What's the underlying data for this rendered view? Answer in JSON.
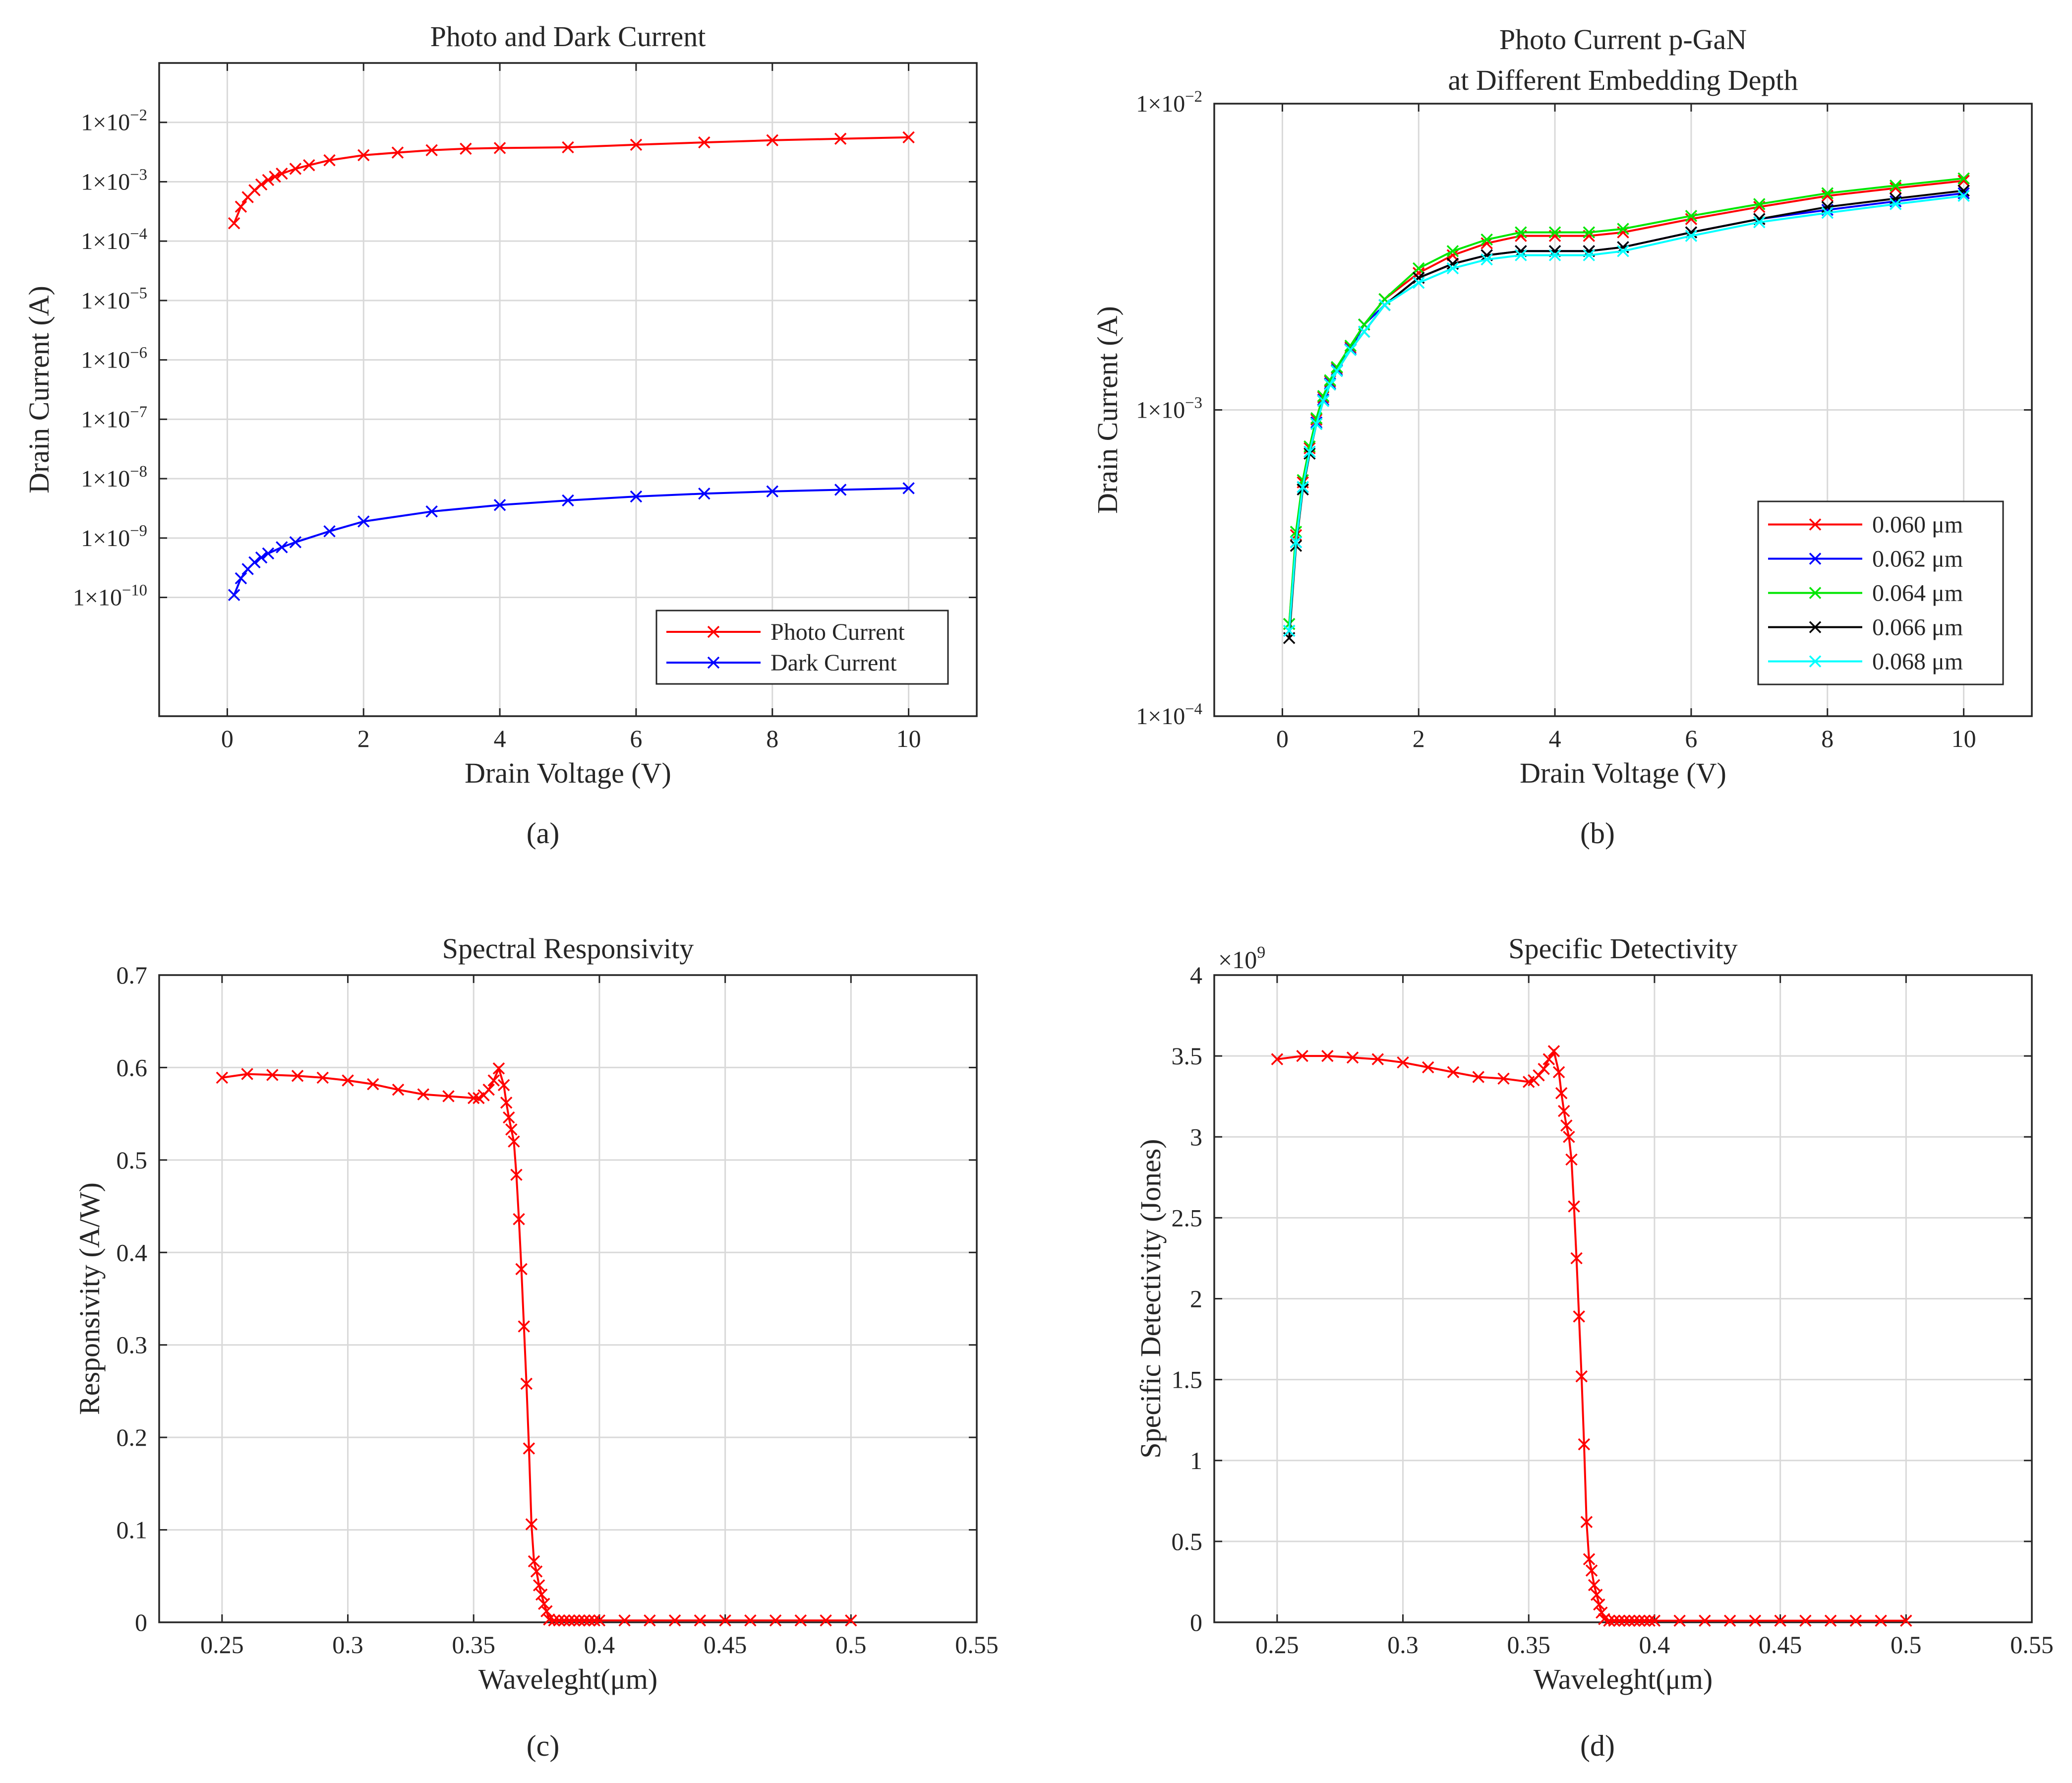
{
  "panel_labels": [
    "(a)",
    "(b)",
    "(c)",
    "(d)"
  ],
  "chart_data": [
    {
      "id": "a",
      "type": "line",
      "title": "Photo and Dark Current",
      "xlabel": "Drain Voltage (V)",
      "ylabel": "Drain Current (A)",
      "yscale": "log",
      "xlim": [
        -1,
        11
      ],
      "ylim_exp": [
        -12,
        -1
      ],
      "xticks": [
        0,
        2,
        4,
        6,
        8,
        10
      ],
      "xtick_labels": [
        "0",
        "2",
        "4",
        "6",
        "8",
        "10"
      ],
      "ytick_exps": [
        -10,
        -9,
        -8,
        -7,
        -6,
        -5,
        -4,
        -3,
        -2
      ],
      "ytick_labels": [
        {
          "base": "1×10",
          "exp": "−10"
        },
        {
          "base": "1×10",
          "exp": "−9"
        },
        {
          "base": "1×10",
          "exp": "−8"
        },
        {
          "base": "1×10",
          "exp": "−7"
        },
        {
          "base": "1×10",
          "exp": "−6"
        },
        {
          "base": "1×10",
          "exp": "−5"
        },
        {
          "base": "1×10",
          "exp": "−4"
        },
        {
          "base": "1×10",
          "exp": "−3"
        },
        {
          "base": "1×10",
          "exp": "−2"
        }
      ],
      "grid": true,
      "legend_position": "bottom-right",
      "series": [
        {
          "name": "Photo Current",
          "color": "#ff0000",
          "x": [
            0.1,
            0.2,
            0.3,
            0.4,
            0.5,
            0.6,
            0.7,
            0.8,
            1.0,
            1.2,
            1.5,
            2,
            2.5,
            3,
            3.5,
            4,
            5,
            6,
            7,
            8,
            9,
            10
          ],
          "y": [
            0.0002,
            0.00038,
            0.00055,
            0.00072,
            0.0009,
            0.00107,
            0.00122,
            0.00137,
            0.00165,
            0.0019,
            0.0023,
            0.0028,
            0.0031,
            0.0034,
            0.0036,
            0.0037,
            0.0038,
            0.0042,
            0.0046,
            0.005,
            0.0053,
            0.0056
          ]
        },
        {
          "name": "Dark Current",
          "color": "#0000ff",
          "x": [
            0.1,
            0.2,
            0.3,
            0.4,
            0.5,
            0.6,
            0.8,
            1.0,
            1.5,
            2,
            3,
            4,
            5,
            6,
            7,
            8,
            9,
            10
          ],
          "y": [
            1.1e-10,
            2.1e-10,
            3e-10,
            3.9e-10,
            4.7e-10,
            5.5e-10,
            7e-10,
            8.5e-10,
            1.3e-09,
            1.9e-09,
            2.8e-09,
            3.6e-09,
            4.3e-09,
            5e-09,
            5.6e-09,
            6.1e-09,
            6.5e-09,
            6.9e-09
          ]
        }
      ]
    },
    {
      "id": "b",
      "type": "line",
      "title": "Photo Current p-GaN",
      "subtitle": "at Different Embedding Depth",
      "xlabel": "Drain Voltage (V)",
      "ylabel": "Drain Current (A)",
      "yscale": "log",
      "xlim": [
        -1,
        11
      ],
      "ylim_exp": [
        -4,
        -2
      ],
      "xticks": [
        0,
        2,
        4,
        6,
        8,
        10
      ],
      "xtick_labels": [
        "0",
        "2",
        "4",
        "6",
        "8",
        "10"
      ],
      "ytick_exps": [
        -4,
        -3,
        -2
      ],
      "ytick_labels": [
        {
          "base": "1×10",
          "exp": "−4"
        },
        {
          "base": "1×10",
          "exp": "−3"
        },
        {
          "base": "1×10",
          "exp": "−2"
        }
      ],
      "grid": true,
      "legend_position": "bottom-right",
      "series": [
        {
          "name": "0.060 μm",
          "color": "#ff0000",
          "x": [
            0.1,
            0.2,
            0.3,
            0.4,
            0.5,
            0.6,
            0.7,
            0.8,
            1.0,
            1.2,
            1.5,
            2,
            2.5,
            3,
            3.5,
            4,
            4.5,
            5,
            6,
            7,
            8,
            9,
            10
          ],
          "y": [
            0.0002,
            0.00039,
            0.00058,
            0.00075,
            0.00093,
            0.0011,
            0.00124,
            0.00137,
            0.0016,
            0.0019,
            0.0023,
            0.0028,
            0.0032,
            0.0035,
            0.0037,
            0.0037,
            0.0037,
            0.0038,
            0.0042,
            0.0046,
            0.005,
            0.0053,
            0.0056
          ]
        },
        {
          "name": "0.062 μm",
          "color": "#0000ff",
          "x": [
            0.1,
            0.2,
            0.3,
            0.4,
            0.5,
            0.6,
            0.7,
            0.8,
            1.0,
            1.2,
            1.5,
            2,
            2.5,
            3,
            3.5,
            4,
            4.5,
            5,
            6,
            7,
            8,
            9,
            10
          ],
          "y": [
            0.00019,
            0.00037,
            0.00056,
            0.00073,
            0.00091,
            0.00108,
            0.00122,
            0.00135,
            0.00158,
            0.0019,
            0.0022,
            0.0027,
            0.003,
            0.0032,
            0.0033,
            0.0033,
            0.0033,
            0.0034,
            0.0038,
            0.0042,
            0.0045,
            0.0048,
            0.0051
          ]
        },
        {
          "name": "0.064 μm",
          "color": "#00e600",
          "x": [
            0.1,
            0.2,
            0.3,
            0.4,
            0.5,
            0.6,
            0.7,
            0.8,
            1.0,
            1.2,
            1.5,
            2,
            2.5,
            3,
            3.5,
            4,
            4.5,
            5,
            6,
            7,
            8,
            9,
            10
          ],
          "y": [
            0.0002,
            0.0004,
            0.00059,
            0.00076,
            0.00094,
            0.00111,
            0.00125,
            0.00138,
            0.00162,
            0.0019,
            0.0023,
            0.0029,
            0.0033,
            0.0036,
            0.0038,
            0.0038,
            0.0038,
            0.0039,
            0.0043,
            0.0047,
            0.0051,
            0.0054,
            0.0057
          ]
        },
        {
          "name": "0.066 μm",
          "color": "#000000",
          "x": [
            0.1,
            0.2,
            0.3,
            0.4,
            0.5,
            0.6,
            0.7,
            0.8,
            1.0,
            1.2,
            1.5,
            2,
            2.5,
            3,
            3.5,
            4,
            4.5,
            5,
            6,
            7,
            8,
            9,
            10
          ],
          "y": [
            0.00018,
            0.00036,
            0.00055,
            0.00072,
            0.0009,
            0.00107,
            0.00121,
            0.00134,
            0.00157,
            0.0018,
            0.0022,
            0.0027,
            0.003,
            0.0032,
            0.0033,
            0.0033,
            0.0033,
            0.0034,
            0.0038,
            0.0042,
            0.0046,
            0.0049,
            0.0052
          ]
        },
        {
          "name": "0.068 μm",
          "color": "#00ffff",
          "x": [
            0.1,
            0.2,
            0.3,
            0.4,
            0.5,
            0.6,
            0.7,
            0.8,
            1.0,
            1.2,
            1.5,
            2,
            2.5,
            3,
            3.5,
            4,
            4.5,
            5,
            6,
            7,
            8,
            9,
            10
          ],
          "y": [
            0.00019,
            0.00037,
            0.00056,
            0.00073,
            0.0009,
            0.00107,
            0.00121,
            0.00134,
            0.00157,
            0.0018,
            0.0022,
            0.0026,
            0.0029,
            0.0031,
            0.0032,
            0.0032,
            0.0032,
            0.0033,
            0.0037,
            0.0041,
            0.0044,
            0.0047,
            0.005
          ]
        }
      ]
    },
    {
      "id": "c",
      "type": "line",
      "title": "Spectral Responsivity",
      "xlabel": "Waveleght(μm)",
      "ylabel": "Responsivity (A/W)",
      "yscale": "linear",
      "xlim": [
        0.225,
        0.55
      ],
      "ylim": [
        0,
        0.7
      ],
      "xticks": [
        0.25,
        0.3,
        0.35,
        0.4,
        0.45,
        0.5,
        0.55
      ],
      "xtick_labels": [
        "0.25",
        "0.3",
        "0.35",
        "0.4",
        "0.45",
        "0.5",
        "0.55"
      ],
      "yticks": [
        0,
        0.1,
        0.2,
        0.3,
        0.4,
        0.5,
        0.6,
        0.7
      ],
      "ytick_labels": [
        "0",
        "0.1",
        "0.2",
        "0.3",
        "0.4",
        "0.5",
        "0.6",
        "0.7"
      ],
      "grid": true,
      "series": [
        {
          "name": "Responsivity",
          "color": "#ff0000",
          "x": [
            0.25,
            0.26,
            0.27,
            0.28,
            0.29,
            0.3,
            0.31,
            0.32,
            0.33,
            0.34,
            0.35,
            0.352,
            0.354,
            0.356,
            0.358,
            0.36,
            0.362,
            0.363,
            0.364,
            0.365,
            0.366,
            0.367,
            0.368,
            0.369,
            0.37,
            0.371,
            0.372,
            0.373,
            0.374,
            0.375,
            0.376,
            0.377,
            0.378,
            0.379,
            0.38,
            0.382,
            0.384,
            0.386,
            0.388,
            0.39,
            0.392,
            0.394,
            0.396,
            0.398,
            0.4,
            0.41,
            0.42,
            0.43,
            0.44,
            0.45,
            0.46,
            0.47,
            0.48,
            0.49,
            0.5
          ],
          "y": [
            0.589,
            0.593,
            0.592,
            0.591,
            0.589,
            0.586,
            0.582,
            0.576,
            0.571,
            0.569,
            0.567,
            0.567,
            0.57,
            0.576,
            0.586,
            0.599,
            0.581,
            0.562,
            0.546,
            0.533,
            0.52,
            0.484,
            0.436,
            0.382,
            0.32,
            0.258,
            0.188,
            0.106,
            0.066,
            0.055,
            0.04,
            0.03,
            0.02,
            0.012,
            0.003,
            0.002,
            0.002,
            0.002,
            0.002,
            0.002,
            0.002,
            0.002,
            0.002,
            0.002,
            0.002,
            0.002,
            0.002,
            0.002,
            0.002,
            0.002,
            0.002,
            0.002,
            0.002,
            0.002,
            0.002
          ]
        }
      ]
    },
    {
      "id": "d",
      "type": "line",
      "title": "Specific Detectivity",
      "xlabel": "Waveleght(μm)",
      "ylabel": "Specific Detectivity (Jones)",
      "yscale": "linear",
      "exponent_label": {
        "base": "×10",
        "exp": "9"
      },
      "xlim": [
        0.225,
        0.55
      ],
      "ylim": [
        0,
        4
      ],
      "xticks": [
        0.25,
        0.3,
        0.35,
        0.4,
        0.45,
        0.5,
        0.55
      ],
      "xtick_labels": [
        "0.25",
        "0.3",
        "0.35",
        "0.4",
        "0.45",
        "0.5",
        "0.55"
      ],
      "yticks": [
        0,
        0.5,
        1,
        1.5,
        2,
        2.5,
        3,
        3.5,
        4
      ],
      "ytick_labels": [
        "0",
        "0.5",
        "1",
        "1.5",
        "2",
        "2.5",
        "3",
        "3.5",
        "4"
      ],
      "grid": true,
      "series": [
        {
          "name": "Detectivity",
          "color": "#ff0000",
          "x": [
            0.25,
            0.26,
            0.27,
            0.28,
            0.29,
            0.3,
            0.31,
            0.32,
            0.33,
            0.34,
            0.35,
            0.352,
            0.354,
            0.356,
            0.358,
            0.36,
            0.362,
            0.363,
            0.364,
            0.365,
            0.366,
            0.367,
            0.368,
            0.369,
            0.37,
            0.371,
            0.372,
            0.373,
            0.374,
            0.375,
            0.376,
            0.377,
            0.378,
            0.379,
            0.38,
            0.382,
            0.384,
            0.386,
            0.388,
            0.39,
            0.392,
            0.394,
            0.396,
            0.398,
            0.4,
            0.41,
            0.42,
            0.43,
            0.44,
            0.45,
            0.46,
            0.47,
            0.48,
            0.49,
            0.5
          ],
          "y": [
            3.48,
            3.5,
            3.5,
            3.49,
            3.48,
            3.46,
            3.43,
            3.4,
            3.37,
            3.36,
            3.34,
            3.35,
            3.38,
            3.42,
            3.48,
            3.53,
            3.4,
            3.27,
            3.16,
            3.07,
            3.0,
            2.86,
            2.57,
            2.25,
            1.89,
            1.52,
            1.1,
            0.62,
            0.39,
            0.32,
            0.23,
            0.17,
            0.11,
            0.06,
            0.02,
            0.01,
            0.01,
            0.01,
            0.01,
            0.01,
            0.01,
            0.01,
            0.01,
            0.01,
            0.01,
            0.01,
            0.01,
            0.01,
            0.01,
            0.01,
            0.01,
            0.01,
            0.01,
            0.01,
            0.01
          ]
        }
      ]
    }
  ]
}
